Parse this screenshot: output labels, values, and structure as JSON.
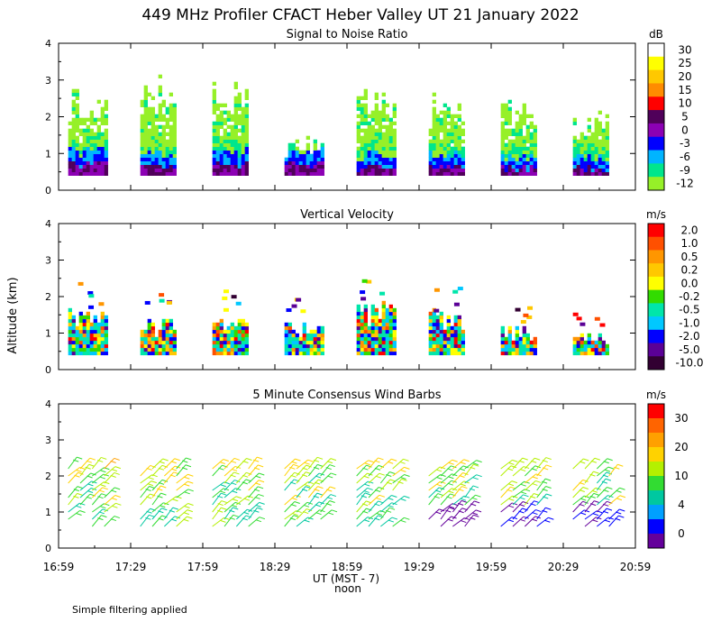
{
  "title": "449 MHz Profiler CFACT Heber Valley UT 21 January 2022",
  "footnote": "Simple filtering applied",
  "y_axis_label": "Altitude (km)",
  "x_axis": {
    "label": "UT  (MST - 7)",
    "sub_label": "noon",
    "tick_labels": [
      "16:59",
      "17:29",
      "17:59",
      "18:29",
      "18:59",
      "19:29",
      "19:59",
      "20:29",
      "20:59"
    ]
  },
  "chart_data": [
    {
      "type": "heatmap",
      "title": "Signal to Noise Ratio",
      "ylabel": "Altitude (km)",
      "ylim": [
        0,
        4
      ],
      "y_ticks": [
        "0",
        "1",
        "2",
        "3",
        "4"
      ],
      "colorbar": {
        "unit": "dB",
        "labels": [
          "30",
          "25",
          "20",
          "15",
          "10",
          "5",
          "0",
          "-3",
          "-6",
          "-9",
          "-12"
        ],
        "colors": [
          "#ffffff",
          "#ffff00",
          "#ffc800",
          "#ff8c00",
          "#ff0000",
          "#50005a",
          "#8c00b4",
          "#0000ff",
          "#00b4ff",
          "#00e68c",
          "#96f028"
        ]
      },
      "segments": [
        {
          "start": "17:03",
          "end": "17:19",
          "top_km": 2.4,
          "band_top_km": 1.0
        },
        {
          "start": "17:33",
          "end": "17:48",
          "top_km": 2.8,
          "band_top_km": 0.9
        },
        {
          "start": "18:03",
          "end": "18:18",
          "top_km": 2.6,
          "band_top_km": 1.0
        },
        {
          "start": "18:33",
          "end": "18:48",
          "top_km": 1.3,
          "band_top_km": 0.95
        },
        {
          "start": "19:03",
          "end": "19:19",
          "top_km": 2.5,
          "band_top_km": 0.9
        },
        {
          "start": "19:33",
          "end": "19:48",
          "top_km": 2.3,
          "band_top_km": 0.9
        },
        {
          "start": "20:03",
          "end": "20:18",
          "top_km": 2.1,
          "band_top_km": 0.85
        },
        {
          "start": "20:33",
          "end": "20:48",
          "top_km": 1.9,
          "band_top_km": 0.85
        }
      ]
    },
    {
      "type": "heatmap",
      "title": "Vertical Velocity",
      "ylabel": "Altitude (km)",
      "ylim": [
        0,
        4
      ],
      "y_ticks": [
        "0",
        "1",
        "2",
        "3",
        "4"
      ],
      "colorbar": {
        "unit": "m/s",
        "labels": [
          "2.0",
          "1.0",
          "0.5",
          "0.2",
          "0.0",
          "-0.2",
          "-0.5",
          "-1.0",
          "-2.0",
          "-5.0",
          "-10.0"
        ],
        "colors": [
          "#ff0000",
          "#ff5000",
          "#ff9600",
          "#ffc800",
          "#ffff00",
          "#32dc00",
          "#00e6aa",
          "#00c8ff",
          "#0000ff",
          "#5a0096",
          "#320032"
        ]
      },
      "segments": [
        {
          "start": "17:03",
          "end": "17:19",
          "top_km": 1.5
        },
        {
          "start": "17:33",
          "end": "17:48",
          "top_km": 1.2
        },
        {
          "start": "18:03",
          "end": "18:18",
          "top_km": 1.4
        },
        {
          "start": "18:33",
          "end": "18:48",
          "top_km": 1.1
        },
        {
          "start": "19:03",
          "end": "19:19",
          "top_km": 1.6
        },
        {
          "start": "19:33",
          "end": "19:48",
          "top_km": 1.4
        },
        {
          "start": "20:03",
          "end": "20:18",
          "top_km": 1.0
        },
        {
          "start": "20:33",
          "end": "20:48",
          "top_km": 0.9
        }
      ]
    },
    {
      "type": "scatter",
      "title": "5 Minute Consensus Wind Barbs",
      "ylabel": "Altitude (km)",
      "ylim": [
        0,
        4
      ],
      "y_ticks": [
        "0",
        "1",
        "2",
        "3",
        "4"
      ],
      "colorbar": {
        "unit": "m/s",
        "labels": [
          "30",
          "20",
          "10",
          "4",
          "0"
        ],
        "colors": [
          "#ff0000",
          "#ff6400",
          "#ffa000",
          "#ffd200",
          "#b4f000",
          "#32dc32",
          "#00c8a0",
          "#00a0ff",
          "#0000ff",
          "#64009b"
        ]
      },
      "barb_times": [
        "17:03",
        "17:08",
        "17:13",
        "17:18",
        "17:33",
        "17:38",
        "17:43",
        "17:48",
        "18:03",
        "18:08",
        "18:13",
        "18:18",
        "18:33",
        "18:38",
        "18:43",
        "18:48",
        "19:03",
        "19:08",
        "19:13",
        "19:18",
        "19:33",
        "19:38",
        "19:43",
        "19:48",
        "20:03",
        "20:08",
        "20:13",
        "20:18",
        "20:33",
        "20:38",
        "20:43",
        "20:48"
      ],
      "levels_km": [
        0.6,
        0.8,
        1.0,
        1.2,
        1.4,
        1.6,
        1.8,
        2.0,
        2.2
      ]
    }
  ]
}
